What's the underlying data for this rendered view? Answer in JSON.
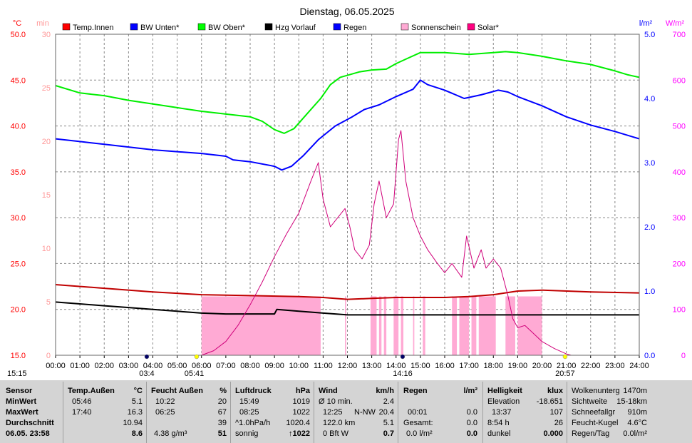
{
  "chart_data": {
    "type": "line",
    "title": "Dienstag, 06.05.2025",
    "x_ticks": [
      "00:00",
      "01:00",
      "02:00",
      "03:00",
      "04:00",
      "05:00",
      "06:00",
      "07:00",
      "08:00",
      "09:00",
      "10:00",
      "11:00",
      "12:00",
      "13:00",
      "14:00",
      "15:00",
      "16:00",
      "17:00",
      "18:00",
      "19:00",
      "20:00",
      "21:00",
      "22:00",
      "23:00",
      "24:00"
    ],
    "xlim": [
      0,
      24
    ],
    "axes": {
      "temp": {
        "unit": "°C",
        "range": [
          15,
          50
        ],
        "ticks": [
          "50.0",
          "45.0",
          "40.0",
          "35.0",
          "30.0",
          "25.0",
          "20.0",
          "15.0"
        ],
        "color": "#ff0000"
      },
      "min": {
        "unit": "min",
        "range": [
          0,
          30
        ],
        "ticks": [
          "30",
          "25",
          "20",
          "15",
          "10",
          "5",
          "0"
        ],
        "color": "#ff9999"
      },
      "rain": {
        "unit": "l/m²",
        "range": [
          0,
          5
        ],
        "ticks": [
          "5.0",
          "4.0",
          "3.0",
          "2.0",
          "1.0",
          "0.0"
        ],
        "color": "#0000ff"
      },
      "solar": {
        "unit": "W/m²",
        "range": [
          0,
          700
        ],
        "ticks": [
          "700",
          "600",
          "500",
          "400",
          "300",
          "200",
          "100",
          "0"
        ],
        "color": "#ff00ff"
      }
    },
    "legend": [
      {
        "name": "Temp.Innen",
        "color": "#ff0000"
      },
      {
        "name": "BW Unten*",
        "color": "#0000ff"
      },
      {
        "name": "BW Oben*",
        "color": "#00ff00"
      },
      {
        "name": "Hzg Vorlauf",
        "color": "#000000"
      },
      {
        "name": "Regen",
        "color": "#0000ff"
      },
      {
        "name": "Sonnenschein",
        "color": "#ffaad4"
      },
      {
        "name": "Solar*",
        "color": "#ff0080"
      }
    ],
    "series": [
      {
        "name": "BW Oben*",
        "axis": "temp",
        "color": "#00ee00",
        "points": [
          [
            0,
            44.4
          ],
          [
            1,
            43.6
          ],
          [
            2,
            43.3
          ],
          [
            3,
            42.8
          ],
          [
            4,
            42.4
          ],
          [
            5,
            42.0
          ],
          [
            6,
            41.6
          ],
          [
            7,
            41.3
          ],
          [
            8,
            41.0
          ],
          [
            8.5,
            40.5
          ],
          [
            9,
            39.6
          ],
          [
            9.4,
            39.2
          ],
          [
            9.8,
            39.7
          ],
          [
            10.3,
            41.2
          ],
          [
            10.9,
            43.0
          ],
          [
            11.3,
            44.5
          ],
          [
            11.7,
            45.3
          ],
          [
            12.5,
            45.9
          ],
          [
            13.0,
            46.1
          ],
          [
            13.6,
            46.2
          ],
          [
            14.0,
            46.8
          ],
          [
            14.5,
            47.4
          ],
          [
            15.0,
            48.0
          ],
          [
            16.0,
            48.0
          ],
          [
            17.0,
            47.8
          ],
          [
            18.0,
            48.0
          ],
          [
            18.5,
            48.1
          ],
          [
            19.0,
            48.0
          ],
          [
            20.0,
            47.6
          ],
          [
            21.0,
            47.1
          ],
          [
            22.0,
            46.7
          ],
          [
            23.0,
            46.0
          ],
          [
            23.5,
            45.6
          ],
          [
            24.0,
            45.3
          ]
        ]
      },
      {
        "name": "BW Unten*",
        "axis": "temp",
        "color": "#0000ff",
        "points": [
          [
            0,
            38.6
          ],
          [
            1,
            38.3
          ],
          [
            2,
            38.0
          ],
          [
            3,
            37.7
          ],
          [
            4,
            37.4
          ],
          [
            5,
            37.2
          ],
          [
            6,
            37.0
          ],
          [
            7,
            36.7
          ],
          [
            7.3,
            36.3
          ],
          [
            8,
            36.1
          ],
          [
            9,
            35.6
          ],
          [
            9.3,
            35.2
          ],
          [
            9.7,
            35.6
          ],
          [
            10.2,
            36.8
          ],
          [
            10.8,
            38.5
          ],
          [
            11.5,
            40.0
          ],
          [
            12.2,
            41.0
          ],
          [
            12.7,
            41.8
          ],
          [
            13.3,
            42.3
          ],
          [
            14.0,
            43.2
          ],
          [
            14.7,
            44.0
          ],
          [
            15.0,
            45.0
          ],
          [
            15.3,
            44.5
          ],
          [
            16.0,
            43.9
          ],
          [
            16.8,
            43.0
          ],
          [
            17.5,
            43.4
          ],
          [
            18.2,
            43.9
          ],
          [
            18.6,
            43.7
          ],
          [
            19.0,
            43.2
          ],
          [
            20.0,
            42.2
          ],
          [
            21.0,
            41.0
          ],
          [
            22.0,
            40.1
          ],
          [
            23.0,
            39.4
          ],
          [
            24.0,
            38.6
          ]
        ]
      },
      {
        "name": "Temp.Innen",
        "axis": "temp",
        "color": "#c00000",
        "points": [
          [
            0,
            22.7
          ],
          [
            2,
            22.3
          ],
          [
            4,
            21.9
          ],
          [
            6,
            21.6
          ],
          [
            8,
            21.5
          ],
          [
            10,
            21.4
          ],
          [
            11,
            21.3
          ],
          [
            12,
            21.1
          ],
          [
            13,
            21.2
          ],
          [
            14,
            21.3
          ],
          [
            16,
            21.3
          ],
          [
            17,
            21.4
          ],
          [
            18,
            21.6
          ],
          [
            19,
            22.0
          ],
          [
            20,
            22.1
          ],
          [
            22,
            21.9
          ],
          [
            24,
            21.8
          ]
        ]
      },
      {
        "name": "Hzg Vorlauf",
        "axis": "temp",
        "color": "#000000",
        "points": [
          [
            0,
            20.8
          ],
          [
            1,
            20.6
          ],
          [
            2,
            20.4
          ],
          [
            3,
            20.2
          ],
          [
            4,
            20.0
          ],
          [
            5,
            19.8
          ],
          [
            6,
            19.6
          ],
          [
            7,
            19.5
          ],
          [
            8,
            19.5
          ],
          [
            9,
            19.5
          ],
          [
            9.1,
            20.0
          ],
          [
            10,
            19.8
          ],
          [
            11,
            19.6
          ],
          [
            12,
            19.4
          ],
          [
            14,
            19.4
          ],
          [
            16,
            19.4
          ],
          [
            18,
            19.4
          ],
          [
            20,
            19.4
          ],
          [
            22,
            19.4
          ],
          [
            24,
            19.4
          ]
        ]
      },
      {
        "name": "Solar*",
        "axis": "solar",
        "color": "#d0007a",
        "points": [
          [
            6.0,
            0
          ],
          [
            6.5,
            10
          ],
          [
            7.0,
            30
          ],
          [
            7.5,
            65
          ],
          [
            8.0,
            110
          ],
          [
            8.5,
            160
          ],
          [
            9.0,
            215
          ],
          [
            9.5,
            265
          ],
          [
            10.0,
            310
          ],
          [
            10.5,
            380
          ],
          [
            10.8,
            420
          ],
          [
            11.0,
            340
          ],
          [
            11.3,
            280
          ],
          [
            11.6,
            300
          ],
          [
            11.9,
            320
          ],
          [
            12.1,
            280
          ],
          [
            12.3,
            230
          ],
          [
            12.6,
            210
          ],
          [
            12.9,
            240
          ],
          [
            13.1,
            330
          ],
          [
            13.3,
            380
          ],
          [
            13.6,
            300
          ],
          [
            13.9,
            330
          ],
          [
            14.1,
            470
          ],
          [
            14.2,
            490
          ],
          [
            14.4,
            380
          ],
          [
            14.7,
            300
          ],
          [
            15.0,
            260
          ],
          [
            15.3,
            230
          ],
          [
            15.7,
            200
          ],
          [
            16.0,
            180
          ],
          [
            16.3,
            200
          ],
          [
            16.7,
            170
          ],
          [
            16.9,
            260
          ],
          [
            17.2,
            190
          ],
          [
            17.5,
            230
          ],
          [
            17.7,
            190
          ],
          [
            18.0,
            210
          ],
          [
            18.3,
            190
          ],
          [
            18.6,
            130
          ],
          [
            18.8,
            80
          ],
          [
            19.0,
            60
          ],
          [
            19.3,
            65
          ],
          [
            19.6,
            50
          ],
          [
            20.0,
            30
          ],
          [
            20.5,
            15
          ],
          [
            21.0,
            3
          ],
          [
            21.2,
            0
          ]
        ]
      }
    ],
    "sunshine_bars": [
      [
        6.0,
        10.9
      ],
      [
        11.9,
        11.95
      ],
      [
        12.95,
        13.2
      ],
      [
        13.3,
        13.4
      ],
      [
        13.5,
        13.6
      ],
      [
        13.9,
        14.1
      ],
      [
        14.2,
        14.3
      ],
      [
        14.7,
        14.75
      ],
      [
        15.1,
        15.2
      ],
      [
        16.3,
        16.5
      ],
      [
        16.6,
        17.0
      ],
      [
        17.1,
        17.3
      ],
      [
        17.4,
        18.1
      ],
      [
        18.5,
        18.9
      ],
      [
        19.0,
        20.0
      ]
    ],
    "sunshine_height_min": 5.5,
    "time_markers": [
      {
        "label": "15:15",
        "x": -0.3,
        "row": "top"
      },
      {
        "label": "03:4",
        "x": 3.75,
        "row": "top"
      },
      {
        "label": "05:41",
        "x": 5.7,
        "row": "top"
      },
      {
        "label": "14:16",
        "x": 14.27,
        "row": "top"
      },
      {
        "label": "20:57",
        "x": 20.95,
        "row": "top"
      }
    ]
  },
  "stats": {
    "sensor": {
      "header": "Sensor",
      "rows": [
        "MinWert",
        "MaxWert",
        "Durchschnitt",
        "06.05. 23:58"
      ]
    },
    "temp": {
      "header": "Temp.Außen",
      "unit": "°C",
      "rows": [
        [
          "05:46",
          "5.1"
        ],
        [
          "17:40",
          "16.3"
        ],
        [
          "",
          "10.94"
        ],
        [
          "",
          "8.6"
        ]
      ]
    },
    "feucht": {
      "header": "Feucht Außen",
      "unit": "%",
      "rows": [
        [
          "10:22",
          "20"
        ],
        [
          "06:25",
          "67"
        ],
        [
          "",
          "39"
        ],
        [
          "4.38 g/m³",
          "51"
        ]
      ]
    },
    "luft": {
      "header": "Luftdruck",
      "unit": "hPa",
      "rows": [
        [
          "15:49",
          "1019"
        ],
        [
          "08:25",
          "1022"
        ],
        [
          "^1.0hPa/h",
          "1020.4"
        ],
        [
          "sonnig",
          "↑1022"
        ]
      ]
    },
    "wind": {
      "header": "Wind",
      "unit": "km/h",
      "rows": [
        [
          "Ø 10 min.",
          "",
          "2.4"
        ],
        [
          "12:25",
          "N-NW",
          "20.4"
        ],
        [
          "122.0 km",
          "",
          "5.1"
        ],
        [
          "0 Bft W",
          "",
          "0.7"
        ]
      ]
    },
    "regen": {
      "header": "Regen",
      "unit": "l/m²",
      "rows": [
        [
          "",
          ""
        ],
        [
          "00:01",
          "0.0"
        ],
        [
          "Gesamt:",
          "0.0"
        ],
        [
          "0.0 l/m²",
          "0.0"
        ]
      ]
    },
    "hell": {
      "header": "Helligkeit",
      "unit": "klux",
      "rows": [
        [
          "Elevation",
          "-18.651"
        ],
        [
          "13:37",
          "107"
        ],
        [
          "8:54 h",
          "26"
        ],
        [
          "dunkel",
          "0.000"
        ]
      ]
    },
    "extra": {
      "rows": [
        [
          "Wolkenunterg",
          "1470m"
        ],
        [
          "Sichtweite",
          "15-18km"
        ],
        [
          "Schneefallgr",
          "910m"
        ],
        [
          "Feucht-Kugel",
          "4.6°C"
        ],
        [
          "Regen/Tag",
          "0.0l/m²"
        ]
      ]
    }
  }
}
